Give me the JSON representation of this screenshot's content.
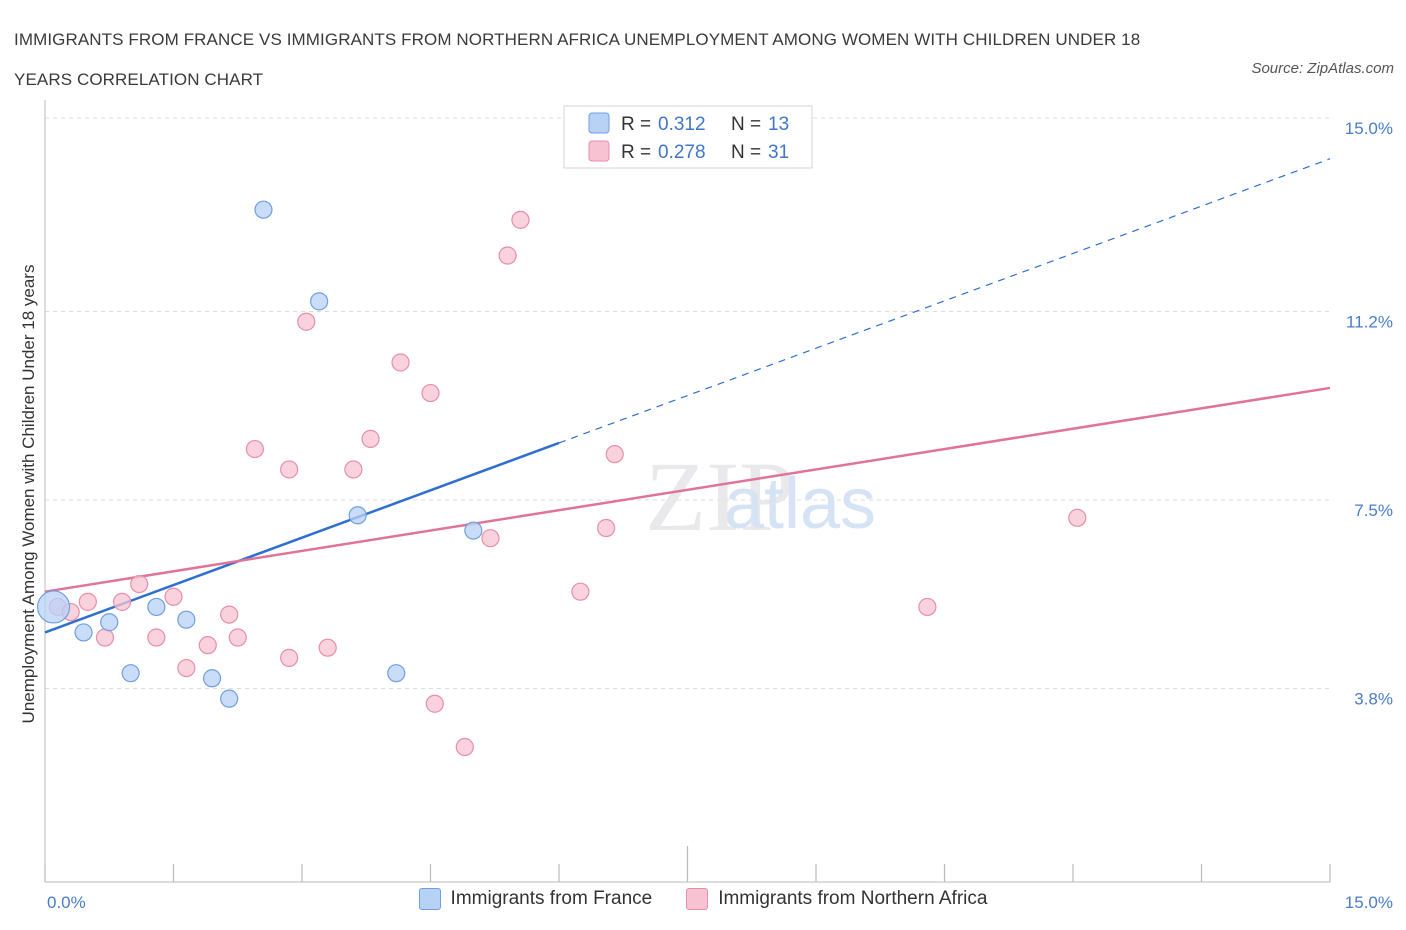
{
  "title": "IMMIGRANTS FROM FRANCE VS IMMIGRANTS FROM NORTHERN AFRICA UNEMPLOYMENT AMONG WOMEN WITH CHILDREN UNDER 18 YEARS CORRELATION CHART",
  "source": "Source: ZipAtlas.com",
  "watermark": {
    "zip": "ZIP",
    "atlas": "atlas"
  },
  "colors": {
    "france_fill": "#b8d2f5",
    "france_stroke": "#6f9fe0",
    "france_line": "#2f6fcf",
    "africa_fill": "#f7c3d2",
    "africa_stroke": "#e68fab",
    "africa_line": "#e0739a",
    "tick_label": "#4a7cc9",
    "grid": "#dcdcdc"
  },
  "legend": {
    "rows": [
      {
        "r_label": "R =",
        "r_value": "0.312",
        "n_label": "N =",
        "n_value": "13"
      },
      {
        "r_label": "R =",
        "r_value": "0.278",
        "n_label": "N =",
        "n_value": "31"
      }
    ]
  },
  "chart_data": {
    "type": "scatter",
    "title": "IMMIGRANTS FROM FRANCE VS IMMIGRANTS FROM NORTHERN AFRICA UNEMPLOYMENT AMONG WOMEN WITH CHILDREN UNDER 18 YEARS CORRELATION CHART",
    "ylabel": "Unemployment Among Women with Children Under 18 years",
    "xlabel": "",
    "xlim": [
      0,
      15
    ],
    "ylim": [
      0,
      15
    ],
    "x_tick_labels": [
      "0.0%",
      "15.0%"
    ],
    "y_ticks": [
      3.8,
      7.5,
      11.2,
      15.0
    ],
    "y_tick_labels": [
      "3.8%",
      "7.5%",
      "11.2%",
      "15.0%"
    ],
    "grid": true,
    "legend_position": "top-center",
    "series": [
      {
        "name": "Immigrants from France",
        "R": 0.312,
        "N": 13,
        "points": [
          [
            0.1,
            5.4
          ],
          [
            0.45,
            4.9
          ],
          [
            0.75,
            5.1
          ],
          [
            1.0,
            4.1
          ],
          [
            1.3,
            5.4
          ],
          [
            1.65,
            5.15
          ],
          [
            1.95,
            4.0
          ],
          [
            2.15,
            3.6
          ],
          [
            2.55,
            13.2
          ],
          [
            3.2,
            11.4
          ],
          [
            3.65,
            7.2
          ],
          [
            4.1,
            4.1
          ],
          [
            5.0,
            6.9
          ]
        ],
        "trend": {
          "x0": 0.0,
          "y0": 4.9,
          "x1": 15.0,
          "y1": 14.2,
          "solid_until_x": 6.0
        }
      },
      {
        "name": "Immigrants from Northern Africa",
        "R": 0.278,
        "N": 31,
        "points": [
          [
            0.15,
            5.4
          ],
          [
            0.3,
            5.3
          ],
          [
            0.5,
            5.5
          ],
          [
            0.7,
            4.8
          ],
          [
            0.9,
            5.5
          ],
          [
            1.1,
            5.85
          ],
          [
            1.3,
            4.8
          ],
          [
            1.5,
            5.6
          ],
          [
            1.65,
            4.2
          ],
          [
            1.9,
            4.65
          ],
          [
            2.15,
            5.25
          ],
          [
            2.25,
            4.8
          ],
          [
            2.45,
            8.5
          ],
          [
            2.85,
            4.4
          ],
          [
            2.85,
            8.1
          ],
          [
            3.05,
            11.0
          ],
          [
            3.3,
            4.6
          ],
          [
            3.6,
            8.1
          ],
          [
            3.8,
            8.7
          ],
          [
            4.15,
            10.2
          ],
          [
            4.5,
            9.6
          ],
          [
            4.55,
            3.5
          ],
          [
            4.9,
            2.65
          ],
          [
            5.2,
            6.75
          ],
          [
            5.4,
            12.3
          ],
          [
            5.55,
            13.0
          ],
          [
            6.25,
            5.7
          ],
          [
            6.55,
            6.95
          ],
          [
            6.65,
            8.4
          ],
          [
            10.3,
            5.4
          ],
          [
            12.05,
            7.15
          ]
        ],
        "trend": {
          "x0": 0.0,
          "y0": 5.7,
          "x1": 15.0,
          "y1": 9.7
        }
      }
    ]
  }
}
